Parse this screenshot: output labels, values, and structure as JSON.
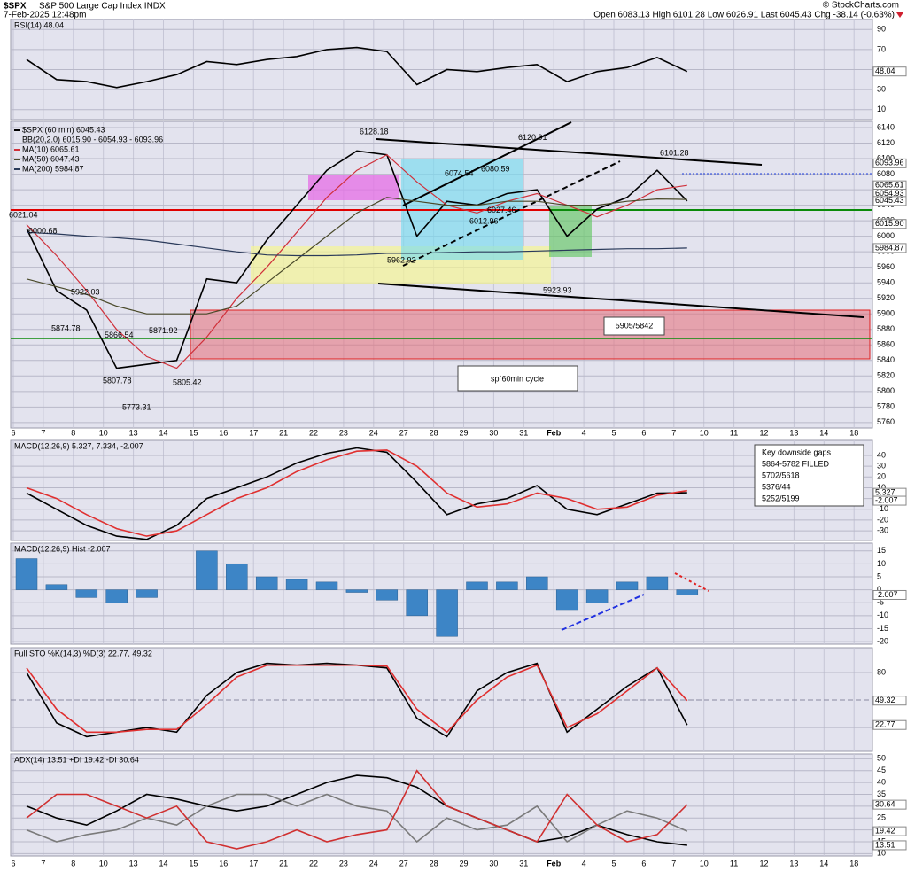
{
  "header": {
    "symbol": "$SPX",
    "name": "S&P 500 Large Cap Index INDX",
    "datetime": "7-Feb-2025 12:48pm",
    "quote": "Open 6083.13 High 6101.28 Low 6026.91 Last 6045.43 Chg -38.14 (-0.63%)",
    "credit": "© StockCharts.com"
  },
  "chart_data": [
    {
      "type": "line",
      "title": "RSI(14) 48.04",
      "ylim": [
        0,
        100
      ],
      "yticks": [
        10,
        30,
        50,
        70,
        90
      ],
      "series": [
        {
          "color": "#000000",
          "values": [
            60,
            40,
            38,
            32,
            38,
            45,
            58,
            55,
            60,
            63,
            70,
            72,
            68,
            35,
            50,
            48,
            52,
            55,
            38,
            48,
            52,
            62,
            48.04,
            null,
            null,
            null,
            null,
            null,
            null
          ]
        }
      ],
      "tags": [
        48.04
      ]
    },
    {
      "type": "line",
      "categories": [
        "6",
        "7",
        "8",
        "10",
        "13",
        "14",
        "15",
        "16",
        "17",
        "21",
        "22",
        "23",
        "24",
        "27",
        "28",
        "29",
        "30",
        "31",
        "Feb",
        "4",
        "5",
        "6",
        "7",
        "10",
        "11",
        "12",
        "13",
        "14",
        "18"
      ],
      "ylim": [
        5753,
        6148
      ],
      "yticks": [
        5760,
        5780,
        5800,
        5820,
        5840,
        5860,
        5880,
        5900,
        5920,
        5940,
        5960,
        5980,
        6000,
        6020,
        6040,
        6060,
        6080,
        6100,
        6120,
        6140
      ],
      "series": [
        {
          "name": "$SPX (60 min) 6045.43",
          "color": "#000000",
          "values": [
            6010,
            5930,
            5905,
            5830,
            5835,
            5840,
            5945,
            5940,
            5995,
            6040,
            6085,
            6110,
            6105,
            6000,
            6045,
            6040,
            6055,
            6060,
            6000,
            6035,
            6050,
            6085,
            6045.43,
            null,
            null,
            null,
            null,
            null,
            null
          ]
        },
        {
          "name": "MA(10) 6065.61",
          "color": "#d0303a",
          "values": [
            6015,
            5975,
            5930,
            5880,
            5845,
            5830,
            5870,
            5920,
            5960,
            6005,
            6050,
            6085,
            6105,
            6070,
            6040,
            6030,
            6045,
            6055,
            6040,
            6025,
            6040,
            6060,
            6065.61,
            null,
            null,
            null,
            null,
            null,
            null
          ]
        },
        {
          "name": "MA(50) 6047.43",
          "color": "#4a4a2a",
          "values": [
            5945,
            5935,
            5925,
            5910,
            5900,
            5900,
            5900,
            5910,
            5940,
            5970,
            6000,
            6030,
            6050,
            6045,
            6040,
            6040,
            6045,
            6045,
            6040,
            6040,
            6045,
            6048,
            6047.43,
            null,
            null,
            null,
            null,
            null,
            null
          ]
        },
        {
          "name": "MA(200) 5984.87",
          "color": "#2a3a5a",
          "values": [
            6005,
            6003,
            6000,
            5998,
            5995,
            5990,
            5985,
            5980,
            5976,
            5975,
            5975,
            5976,
            5978,
            5978,
            5979,
            5980,
            5980,
            5981,
            5982,
            5983,
            5984,
            5984,
            5984.87,
            null,
            null,
            null,
            null,
            null,
            null
          ]
        }
      ],
      "note": "BB(20,2.0) 6015.90 - 6054.93 - 6093.96",
      "point_labels": [
        6021.04,
        6000.68,
        5922.03,
        5874.78,
        5866.54,
        5871.92,
        5807.78,
        5773.31,
        5805.42,
        6128.18,
        6074.54,
        6080.59,
        6027.46,
        6012.96,
        5962.92,
        6120.91,
        5923.93,
        6101.28
      ],
      "tags": [
        6093.96,
        6065.61,
        6054.93,
        6045.43,
        {
          "value": 6015.9,
          "label": "6015.90"
        },
        5984.87
      ],
      "annotations": [
        "5905/5842",
        "sp`60min cycle"
      ]
    },
    {
      "type": "line",
      "title": "MACD(12,26,9) 5.327, 7.334, -2.007",
      "ylim": [
        -39,
        54
      ],
      "yticks": [
        -30,
        -20,
        -10,
        0,
        10,
        20,
        30,
        40
      ],
      "series": [
        {
          "color": "#000000",
          "values": [
            5,
            -10,
            -25,
            -35,
            -38,
            -25,
            0,
            10,
            20,
            33,
            42,
            47,
            43,
            15,
            -15,
            -5,
            0,
            12,
            -10,
            -15,
            -5,
            5,
            5.327,
            null,
            null,
            null,
            null,
            null,
            null
          ]
        },
        {
          "color": "#e03030",
          "values": [
            10,
            0,
            -15,
            -28,
            -35,
            -30,
            -15,
            0,
            10,
            25,
            36,
            44,
            45,
            30,
            5,
            -8,
            -5,
            5,
            0,
            -10,
            -8,
            3,
            7.334,
            null,
            null,
            null,
            null,
            null,
            null
          ]
        }
      ],
      "tags": [
        5.327,
        -2.007
      ],
      "annotations": [
        "Key downside gaps",
        "5864-5782 FILLED",
        "5702/5618",
        "5376/44",
        "5252/5199"
      ]
    },
    {
      "type": "bar",
      "title": "MACD(12,26,9) Hist -2.007",
      "ylim": [
        -21,
        18
      ],
      "yticks": [
        -20,
        -15,
        -10,
        -5,
        0,
        5,
        10,
        15
      ],
      "color": "#3d85c6",
      "values": [
        12,
        2,
        -3,
        -5,
        -3,
        0,
        15,
        10,
        5,
        4,
        3,
        -1,
        -4,
        -10,
        -18,
        3,
        3,
        5,
        -8,
        -5,
        3,
        5,
        -2.007,
        null,
        null,
        null,
        null,
        null,
        null
      ],
      "tags": [
        -2.007
      ]
    },
    {
      "type": "line",
      "title": "Full STO %K(14,3) %D(3) 22.77, 49.32",
      "ylim": [
        -6,
        107
      ],
      "yticks": [
        20,
        80
      ],
      "series": [
        {
          "color": "#000000",
          "values": [
            80,
            25,
            10,
            15,
            20,
            15,
            55,
            80,
            90,
            88,
            90,
            88,
            85,
            30,
            10,
            60,
            80,
            90,
            15,
            40,
            65,
            85,
            22.77,
            null,
            null,
            null,
            null,
            null,
            null
          ]
        },
        {
          "color": "#e03030",
          "values": [
            85,
            40,
            15,
            15,
            18,
            18,
            45,
            75,
            88,
            88,
            88,
            88,
            87,
            40,
            15,
            50,
            75,
            88,
            20,
            35,
            60,
            85,
            49.32,
            null,
            null,
            null,
            null,
            null,
            null
          ]
        }
      ],
      "tags": [
        49.32,
        22.77
      ]
    },
    {
      "type": "line",
      "title": "ADX(14) 13.51 +DI 19.42 -DI 30.64",
      "categories": [
        "6",
        "7",
        "8",
        "10",
        "13",
        "14",
        "15",
        "16",
        "17",
        "21",
        "22",
        "23",
        "24",
        "27",
        "28",
        "29",
        "30",
        "31",
        "Feb",
        "4",
        "5",
        "6",
        "7",
        "10",
        "11",
        "12",
        "13",
        "14",
        "18"
      ],
      "ylim": [
        9,
        52
      ],
      "yticks": [
        10,
        15,
        20,
        25,
        30,
        35,
        40,
        45,
        50
      ],
      "series": [
        {
          "color": "#000000",
          "values": [
            30,
            25,
            22,
            28,
            35,
            33,
            30,
            28,
            30,
            35,
            40,
            43,
            42,
            38,
            30,
            25,
            20,
            15,
            17,
            22,
            18,
            15,
            13.51,
            null,
            null,
            null,
            null,
            null,
            null
          ]
        },
        {
          "color": "#7a7a7a",
          "values": [
            20,
            15,
            18,
            20,
            25,
            22,
            30,
            35,
            35,
            30,
            35,
            30,
            28,
            15,
            25,
            20,
            22,
            30,
            15,
            22,
            28,
            25,
            19.42,
            null,
            null,
            null,
            null,
            null,
            null
          ]
        },
        {
          "color": "#d03030",
          "values": [
            25,
            35,
            35,
            30,
            25,
            30,
            15,
            12,
            15,
            20,
            15,
            18,
            20,
            45,
            30,
            25,
            20,
            15,
            35,
            22,
            15,
            18,
            30.64,
            null,
            null,
            null,
            null,
            null,
            null
          ]
        }
      ],
      "tags": [
        30.64,
        19.42,
        13.51
      ]
    }
  ]
}
